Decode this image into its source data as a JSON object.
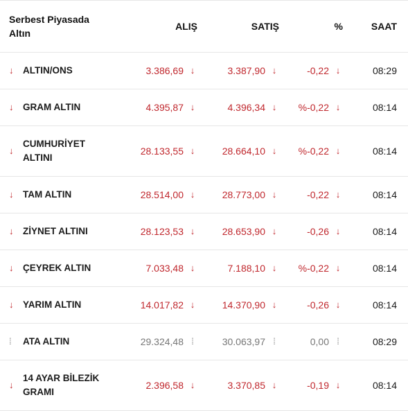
{
  "header": {
    "name": "Serbest Piyasada Altın",
    "alis": "ALIŞ",
    "satis": "SATIŞ",
    "pct": "%",
    "saat": "SAAT"
  },
  "colors": {
    "down": "#c0272d",
    "flat": "#888888"
  },
  "rows": [
    {
      "name": "ALTIN/ONS",
      "trend": "down",
      "trend_glyph": "↓",
      "alis": "3.386,69",
      "alis_arrow": "↓",
      "satis": "3.387,90",
      "satis_arrow": "↓",
      "pct": "-0,22",
      "pct_arrow": "↓",
      "saat": "08:29"
    },
    {
      "name": "GRAM ALTIN",
      "trend": "down",
      "trend_glyph": "↓",
      "alis": "4.395,87",
      "alis_arrow": "↓",
      "satis": "4.396,34",
      "satis_arrow": "↓",
      "pct": "%-0,22",
      "pct_arrow": "↓",
      "saat": "08:14"
    },
    {
      "name": "CUMHURİYET ALTINI",
      "trend": "down",
      "trend_glyph": "↓",
      "alis": "28.133,55",
      "alis_arrow": "↓",
      "satis": "28.664,10",
      "satis_arrow": "↓",
      "pct": "%-0,22",
      "pct_arrow": "↓",
      "saat": "08:14"
    },
    {
      "name": "TAM ALTIN",
      "trend": "down",
      "trend_glyph": "↓",
      "alis": "28.514,00",
      "alis_arrow": "↓",
      "satis": "28.773,00",
      "satis_arrow": "↓",
      "pct": "-0,22",
      "pct_arrow": "↓",
      "saat": "08:14"
    },
    {
      "name": "ZİYNET ALTINI",
      "trend": "down",
      "trend_glyph": "↓",
      "alis": "28.123,53",
      "alis_arrow": "↓",
      "satis": "28.653,90",
      "satis_arrow": "↓",
      "pct": "-0,26",
      "pct_arrow": "↓",
      "saat": "08:14"
    },
    {
      "name": "ÇEYREK ALTIN",
      "trend": "down",
      "trend_glyph": "↓",
      "alis": "7.033,48",
      "alis_arrow": "↓",
      "satis": "7.188,10",
      "satis_arrow": "↓",
      "pct": "%-0,22",
      "pct_arrow": "↓",
      "saat": "08:14"
    },
    {
      "name": "YARIM ALTIN",
      "trend": "down",
      "trend_glyph": "↓",
      "alis": "14.017,82",
      "alis_arrow": "↓",
      "satis": "14.370,90",
      "satis_arrow": "↓",
      "pct": "-0,26",
      "pct_arrow": "↓",
      "saat": "08:14"
    },
    {
      "name": "ATA ALTIN",
      "trend": "flat",
      "trend_glyph": "⁞",
      "alis": "29.324,48",
      "alis_arrow": "⁞",
      "satis": "30.063,97",
      "satis_arrow": "⁞",
      "pct": "0,00",
      "pct_arrow": "⁞",
      "saat": "08:29"
    },
    {
      "name": "14 AYAR BİLEZİK GRAMI",
      "trend": "down",
      "trend_glyph": "↓",
      "alis": "2.396,58",
      "alis_arrow": "↓",
      "satis": "3.370,85",
      "satis_arrow": "↓",
      "pct": "-0,19",
      "pct_arrow": "↓",
      "saat": "08:14"
    }
  ]
}
